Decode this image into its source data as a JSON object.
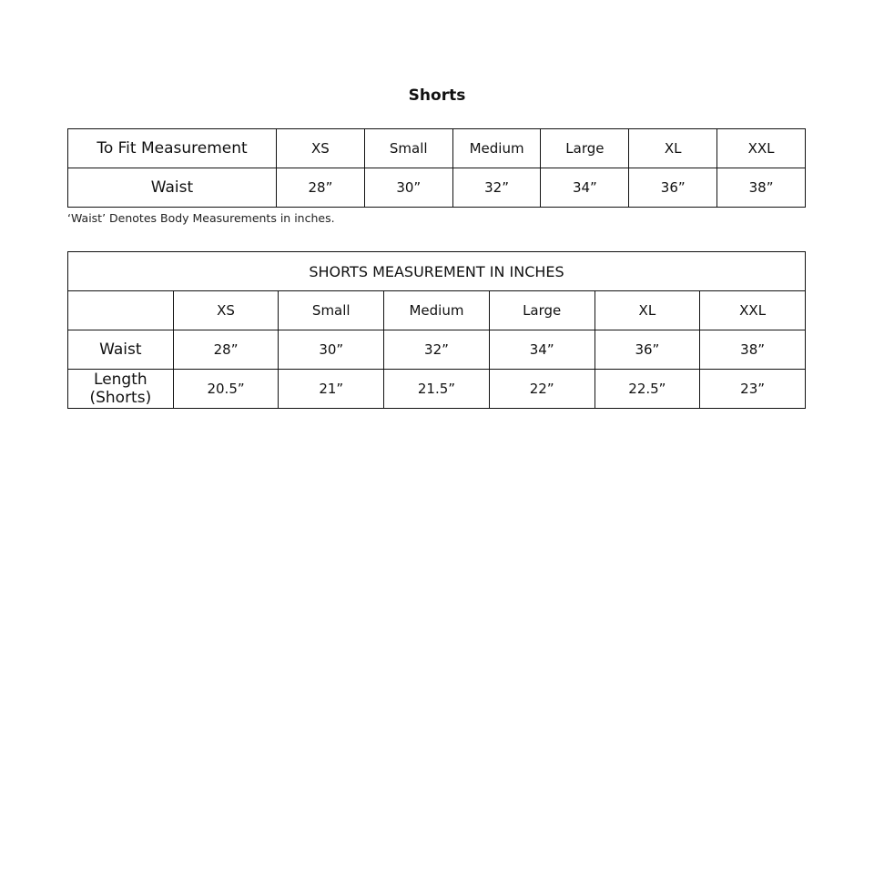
{
  "title": "Shorts",
  "fit_table": {
    "header": [
      "To Fit Measurement",
      "XS",
      "Small",
      "Medium",
      "Large",
      "XL",
      "XXL"
    ],
    "rows": [
      [
        "Waist",
        "28”",
        "30”",
        "32”",
        "34”",
        "36”",
        "38”"
      ]
    ]
  },
  "note": "‘Waist’ Denotes Body Measurements in inches.",
  "garment_table": {
    "title": "SHORTS MEASUREMENT IN INCHES",
    "header": [
      "",
      "XS",
      "Small",
      "Medium",
      "Large",
      "XL",
      "XXL"
    ],
    "rows": [
      [
        "Waist",
        "28”",
        "30”",
        "32”",
        "34”",
        "36”",
        "38”"
      ],
      [
        "Length (Shorts)",
        "20.5”",
        "21”",
        "21.5”",
        "22”",
        "22.5”",
        "23”"
      ]
    ]
  }
}
